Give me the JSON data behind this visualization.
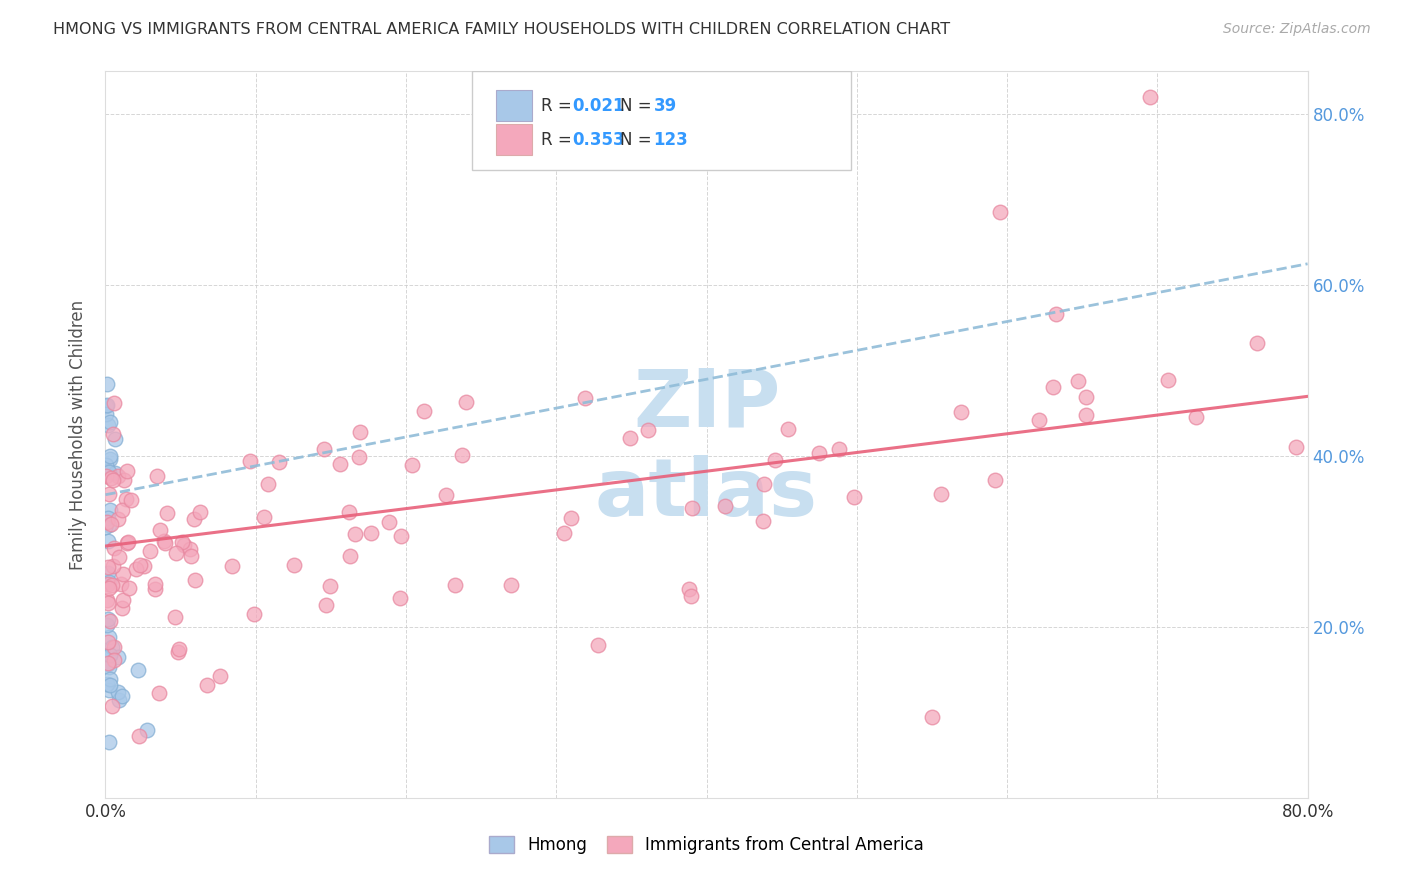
{
  "title": "HMONG VS IMMIGRANTS FROM CENTRAL AMERICA FAMILY HOUSEHOLDS WITH CHILDREN CORRELATION CHART",
  "source": "Source: ZipAtlas.com",
  "ylabel": "Family Households with Children",
  "hmong_R": 0.021,
  "hmong_N": 39,
  "central_america_R": 0.353,
  "central_america_N": 123,
  "hmong_color": "#a8c8e8",
  "hmong_edge_color": "#85afd4",
  "hmong_line_color": "#90bcd8",
  "central_america_color": "#f4a8bc",
  "central_america_edge_color": "#e888a0",
  "central_america_line_color": "#e8607a",
  "legend_label_hmong": "Hmong",
  "legend_label_ca": "Immigrants from Central America",
  "background_color": "#ffffff",
  "grid_color": "#cccccc",
  "title_color": "#333333",
  "right_tick_color": "#5599dd",
  "r_n_color": "#3399ff",
  "r_label_color": "#333333",
  "watermark_color": "#c8dff0",
  "xlim": [
    0.0,
    0.8
  ],
  "ylim": [
    0.0,
    0.85
  ],
  "hmong_seed": 12345,
  "ca_seed": 67890
}
